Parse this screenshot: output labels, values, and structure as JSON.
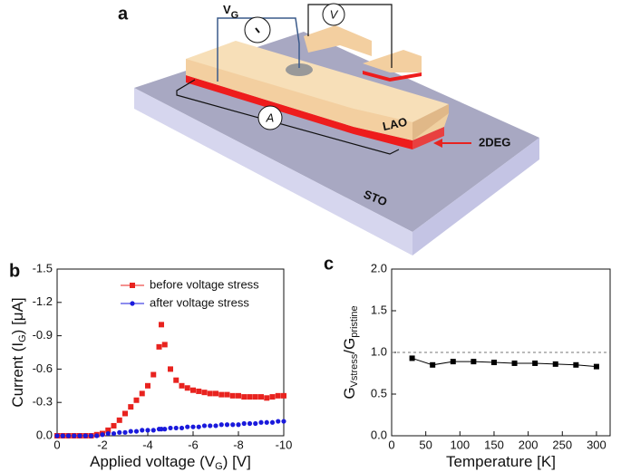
{
  "diagram": {
    "label": "a",
    "gate_meter": "V",
    "gate_meter_sub": "G",
    "voltmeter": "V",
    "ammeter": "A",
    "lao": "LAO",
    "interface": "2DEG",
    "substrate": "STO"
  },
  "chart_data": [
    {
      "type": "scatter",
      "panel": "b",
      "xlabel_parts": [
        "Applied voltage (V",
        "G",
        ") [V]"
      ],
      "ylabel_parts": [
        "Current (I",
        "G",
        ") [μA]"
      ],
      "x": [
        0,
        -0.25,
        -0.5,
        -0.75,
        -1,
        -1.25,
        -1.5,
        -1.75,
        -2,
        -2.25,
        -2.5,
        -2.75,
        -3,
        -3.25,
        -3.5,
        -3.75,
        -4,
        -4.25,
        -4.5,
        -4.6,
        -4.75,
        -5,
        -5.25,
        -5.5,
        -5.75,
        -6,
        -6.25,
        -6.5,
        -6.75,
        -7,
        -7.25,
        -7.5,
        -7.75,
        -8,
        -8.25,
        -8.5,
        -8.75,
        -9,
        -9.25,
        -9.5,
        -9.75,
        -10
      ],
      "series": [
        {
          "name": "before voltage stress",
          "color": "#e8231f",
          "marker": "square",
          "values": [
            0,
            0,
            0,
            0,
            0,
            0,
            0,
            -0.01,
            -0.02,
            -0.05,
            -0.09,
            -0.14,
            -0.2,
            -0.26,
            -0.32,
            -0.38,
            -0.45,
            -0.55,
            -0.8,
            -1.0,
            -0.82,
            -0.6,
            -0.5,
            -0.45,
            -0.43,
            -0.41,
            -0.4,
            -0.39,
            -0.38,
            -0.38,
            -0.37,
            -0.37,
            -0.36,
            -0.36,
            -0.35,
            -0.35,
            -0.35,
            -0.35,
            -0.34,
            -0.35,
            -0.36,
            -0.36
          ]
        },
        {
          "name": "after voltage stress",
          "color": "#1a1adc",
          "marker": "circle",
          "values": [
            0,
            0,
            0,
            0,
            0,
            0,
            0,
            0,
            -0.01,
            -0.02,
            -0.02,
            -0.03,
            -0.03,
            -0.04,
            -0.04,
            -0.05,
            -0.05,
            -0.05,
            -0.06,
            -0.06,
            -0.06,
            -0.07,
            -0.07,
            -0.07,
            -0.08,
            -0.08,
            -0.08,
            -0.09,
            -0.09,
            -0.09,
            -0.1,
            -0.1,
            -0.1,
            -0.1,
            -0.11,
            -0.11,
            -0.11,
            -0.12,
            -0.12,
            -0.12,
            -0.13,
            -0.13
          ]
        }
      ],
      "xlim": [
        0,
        -10
      ],
      "xticks": [
        0,
        -2,
        -4,
        -6,
        -8,
        -10
      ],
      "ylim": [
        0,
        -1.5
      ],
      "yticks": [
        {
          "value": 0,
          "label": "0.0"
        },
        -0.3,
        -0.6,
        -0.9,
        -1.2,
        -1.5
      ],
      "legend": "upper right"
    },
    {
      "type": "line",
      "panel": "c",
      "xlabel_parts": [
        "Temperature [K]"
      ],
      "ylabel_parts": [
        "G",
        "Vstress",
        "/G",
        "pristine"
      ],
      "x": [
        30,
        60,
        90,
        120,
        150,
        180,
        210,
        240,
        270,
        300
      ],
      "series": [
        {
          "color": "#000000",
          "marker": "square",
          "values": [
            0.93,
            0.85,
            0.89,
            0.89,
            0.88,
            0.87,
            0.87,
            0.86,
            0.85,
            0.83
          ]
        }
      ],
      "xlim": [
        0,
        320
      ],
      "xticks": [
        0,
        50,
        100,
        150,
        200,
        250,
        300
      ],
      "ylim": [
        0,
        2
      ],
      "yticks": [
        {
          "value": 0,
          "label": "0.0"
        },
        0.5,
        {
          "value": 1,
          "label": "1.0"
        },
        1.5,
        {
          "value": 2,
          "label": "2.0"
        }
      ],
      "hline": 1
    }
  ]
}
